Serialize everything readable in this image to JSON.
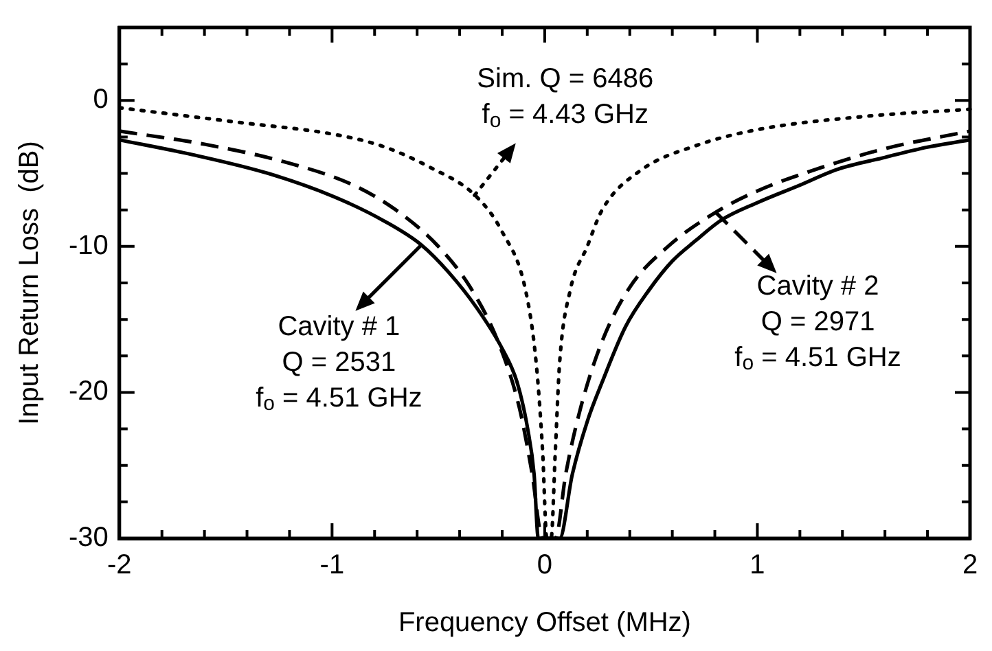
{
  "chart_data": {
    "type": "line",
    "xlabel": "Frequency Offset (MHz)",
    "ylabel": "Input Return Loss  (dB)",
    "xlim": [
      -2,
      2
    ],
    "ylim": [
      -30,
      5
    ],
    "xticks": [
      -2,
      {
        "value": -1.8,
        "label": null
      },
      {
        "value": -1.6,
        "label": null
      },
      {
        "value": -1.4,
        "label": null
      },
      {
        "value": -1.2,
        "label": null
      },
      -1,
      {
        "value": -0.8,
        "label": null
      },
      {
        "value": -0.6,
        "label": null
      },
      {
        "value": -0.4,
        "label": null
      },
      {
        "value": -0.2,
        "label": null
      },
      0,
      {
        "value": 0.2,
        "label": null
      },
      {
        "value": 0.4,
        "label": null
      },
      {
        "value": 0.6,
        "label": null
      },
      {
        "value": 0.8,
        "label": null
      },
      1,
      {
        "value": 1.2,
        "label": null
      },
      {
        "value": 1.4,
        "label": null
      },
      {
        "value": 1.6,
        "label": null
      },
      {
        "value": 1.8,
        "label": null
      },
      2
    ],
    "yticks": [
      -30,
      {
        "value": -27.5,
        "label": null
      },
      {
        "value": -25,
        "label": null
      },
      {
        "value": -22.5,
        "label": null
      },
      -20,
      {
        "value": -17.5,
        "label": null
      },
      {
        "value": -15,
        "label": null
      },
      {
        "value": -12.5,
        "label": null
      },
      -10,
      {
        "value": -7.5,
        "label": null
      },
      {
        "value": -5,
        "label": null
      },
      {
        "value": -2.5,
        "label": null
      },
      0,
      {
        "value": 2.5,
        "label": null
      }
    ],
    "grid": false,
    "legend": false,
    "marker": "none",
    "series": [
      {
        "color": "#000000",
        "line_style": "solid",
        "x": [
          -2,
          -1.66,
          -1.3,
          -0.99,
          -0.75,
          -0.58,
          -0.45,
          -0.32,
          -0.2,
          -0.13,
          -0.08,
          -0.05,
          -0.03,
          0.07,
          0.13,
          0.2,
          0.27,
          0.38,
          0.49,
          0.6,
          0.71,
          0.83,
          1.0,
          1.2,
          1.38,
          1.6,
          1.8,
          2
        ],
        "values": [
          -2.7,
          -3.7,
          -5.0,
          -6.6,
          -8.3,
          -9.9,
          -11.8,
          -14.2,
          -17.0,
          -19.3,
          -22.5,
          -25.6,
          -30,
          -30,
          -25.6,
          -22,
          -19.3,
          -15.5,
          -13,
          -11,
          -9.6,
          -8.2,
          -7.0,
          -5.8,
          -4.7,
          -3.9,
          -3.2,
          -2.7
        ]
      },
      {
        "color": "#000000",
        "line_style": "dashed",
        "x": [
          -2,
          -1.6,
          -1.2,
          -0.9,
          -0.7,
          -0.5,
          -0.35,
          -0.22,
          -0.12,
          -0.06,
          -0.01,
          0.05,
          0.1,
          0.17,
          0.27,
          0.4,
          0.58,
          0.8,
          1.0,
          1.3,
          1.6,
          2
        ],
        "values": [
          -2.1,
          -3.0,
          -4.3,
          -5.8,
          -7.5,
          -10,
          -12.8,
          -16.5,
          -21,
          -25.5,
          -30,
          -30,
          -25.5,
          -21,
          -16.5,
          -12.8,
          -10,
          -7.7,
          -6.2,
          -4.6,
          -3.3,
          -2.1
        ]
      },
      {
        "color": "#000000",
        "line_style": "dotted",
        "x": [
          -2,
          -1.44,
          -1.0,
          -0.77,
          -0.55,
          -0.32,
          -0.2,
          -0.09,
          -0.04,
          -0.01,
          0.01,
          0.03,
          0.05,
          0.07,
          0.12,
          0.2,
          0.27,
          0.45,
          0.71,
          1.0,
          1.5,
          2
        ],
        "values": [
          -0.5,
          -1.5,
          -2.3,
          -3.1,
          -4.5,
          -6.6,
          -9,
          -13,
          -18,
          -24,
          -30,
          -30,
          -24,
          -18,
          -13,
          -10,
          -7.5,
          -4.8,
          -3.1,
          -2.0,
          -1.1,
          -0.6
        ]
      }
    ],
    "annotations": [
      {
        "text": "Sim. Q = 6486\nf$_{o}$ = 4.43 GHz",
        "x": -0.33,
        "y": -6.5
      },
      {
        "text": "Cavity # 1\nQ = 2531\nf$_{o}$ = 4.51 GHz",
        "x": -0.58,
        "y": -9.9
      },
      {
        "text": "Cavity # 2\nQ = 2971\nf$_{o}$ = 4.51 GHz",
        "x": 0.8,
        "y": -7.6
      }
    ]
  }
}
